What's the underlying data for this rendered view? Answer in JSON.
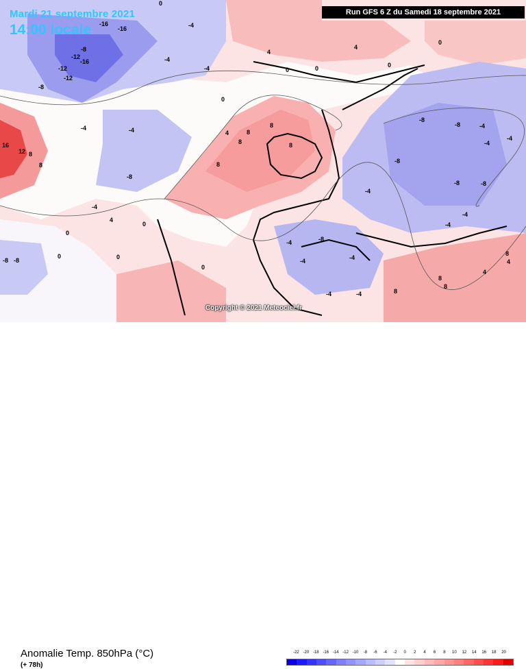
{
  "header": {
    "date": "Mardi 21 septembre 2021",
    "time": "14:00 locale",
    "run_info": "Run GFS 6 Z du Samedi 18 septembre 2021"
  },
  "map": {
    "copyright": "Copyright © 2021 Meteociel.fr",
    "labels": [
      "-16",
      "-16",
      "-12",
      "-16",
      "-12",
      "-12",
      "-8",
      "-4",
      "-4",
      "-4",
      "-8",
      "-4",
      "-4",
      "-8",
      "-4",
      "4",
      "4",
      "0",
      "0",
      "0",
      "8",
      "8",
      "8",
      "8",
      "8",
      "4",
      "16",
      "12",
      "8",
      "8",
      "-8",
      "-8",
      "-8",
      "-8",
      "-8",
      "-8",
      "-4",
      "-4",
      "-4",
      "-4",
      "-4",
      "-4",
      "-4",
      "-4",
      "-4",
      "-4",
      "-4",
      "4",
      "4",
      "4",
      "8",
      "8",
      "8",
      "8",
      "0",
      "0",
      "0",
      "0",
      "0",
      "0",
      "-8",
      "-8",
      "0",
      "0"
    ]
  },
  "footer": {
    "title": "Anomalie Temp. 850hPa (°C)",
    "lead_time": "(+ 78h)"
  },
  "legend": {
    "ticks": [
      "-22",
      "-20",
      "-18",
      "-16",
      "-14",
      "-12",
      "-10",
      "-8",
      "-6",
      "-4",
      "-2",
      "0",
      "2",
      "4",
      "6",
      "8",
      "10",
      "12",
      "14",
      "16",
      "18",
      "20"
    ],
    "colors": [
      "#0a00e0",
      "#1a1aff",
      "#3333ff",
      "#4d4dff",
      "#6666ff",
      "#7f7fff",
      "#9393ff",
      "#a7a7ff",
      "#bbbbff",
      "#cfcfff",
      "#e3e3ff",
      "#ffffff",
      "#ffe3e3",
      "#ffcfcf",
      "#ffbbbb",
      "#ffa7a7",
      "#ff9393",
      "#ff7f7f",
      "#ff6666",
      "#ff4d4d",
      "#ff3333",
      "#ff1a1a",
      "#e00000"
    ]
  }
}
